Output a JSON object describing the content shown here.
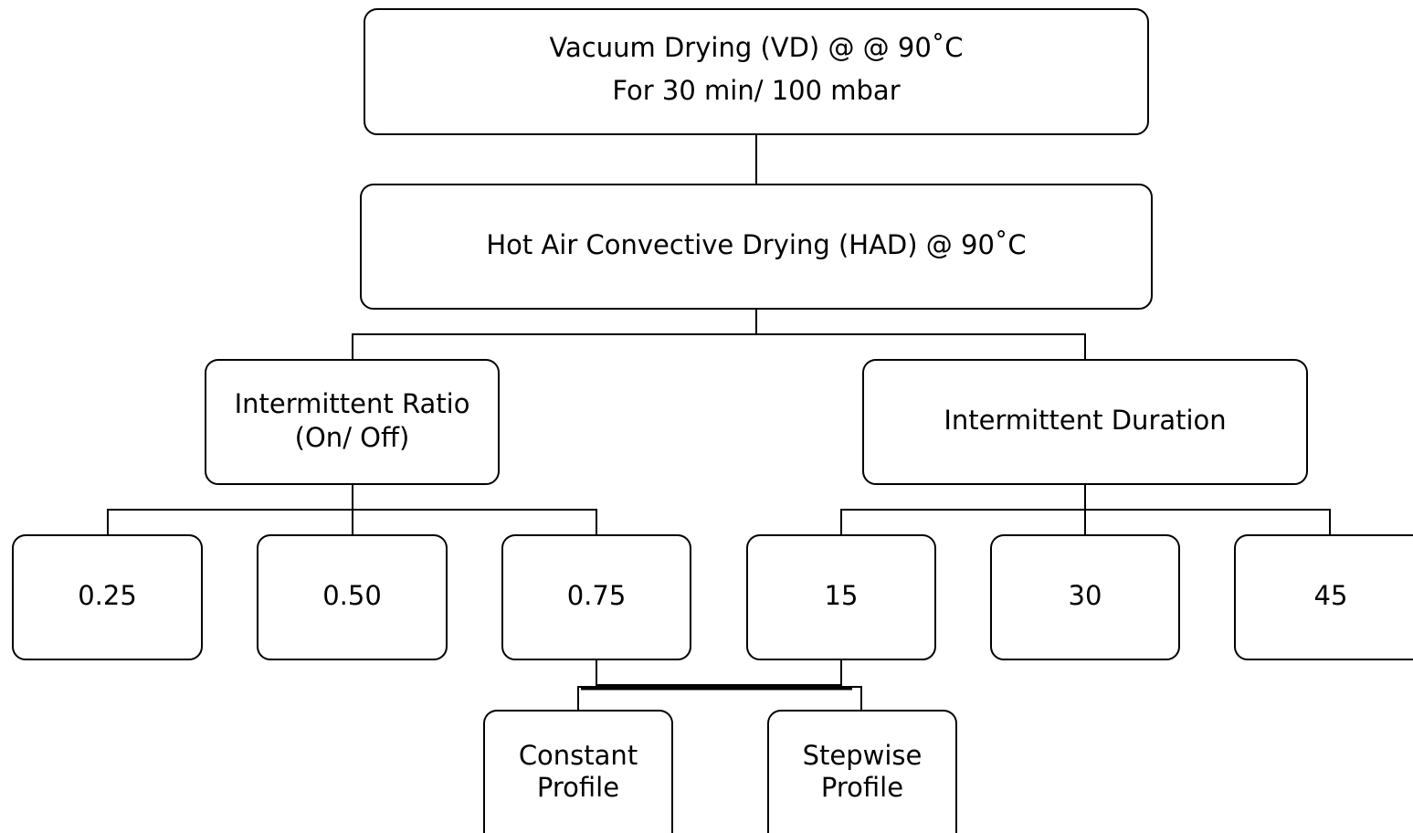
{
  "nodes": [
    {
      "lines": [
        "Vacuum Drying (VD) @ @ 90˚C",
        "For 30 min/ 100 mbar"
      ]
    },
    {
      "lines": [
        "Hot Air Convective Drying (HAD) @ 90˚C"
      ]
    },
    {
      "lines": [
        "Intermittent Ratio",
        "(On/ Off)"
      ]
    },
    {
      "lines": [
        "Intermittent Duration"
      ]
    },
    {
      "lines": [
        "0.25"
      ]
    },
    {
      "lines": [
        "0.50"
      ]
    },
    {
      "lines": [
        "0.75"
      ]
    },
    {
      "lines": [
        "15"
      ]
    },
    {
      "lines": [
        "30"
      ]
    },
    {
      "lines": [
        "45"
      ]
    },
    {
      "lines": [
        "Constant",
        "Profile"
      ]
    },
    {
      "lines": [
        "Stepwise",
        "Profile"
      ]
    }
  ]
}
